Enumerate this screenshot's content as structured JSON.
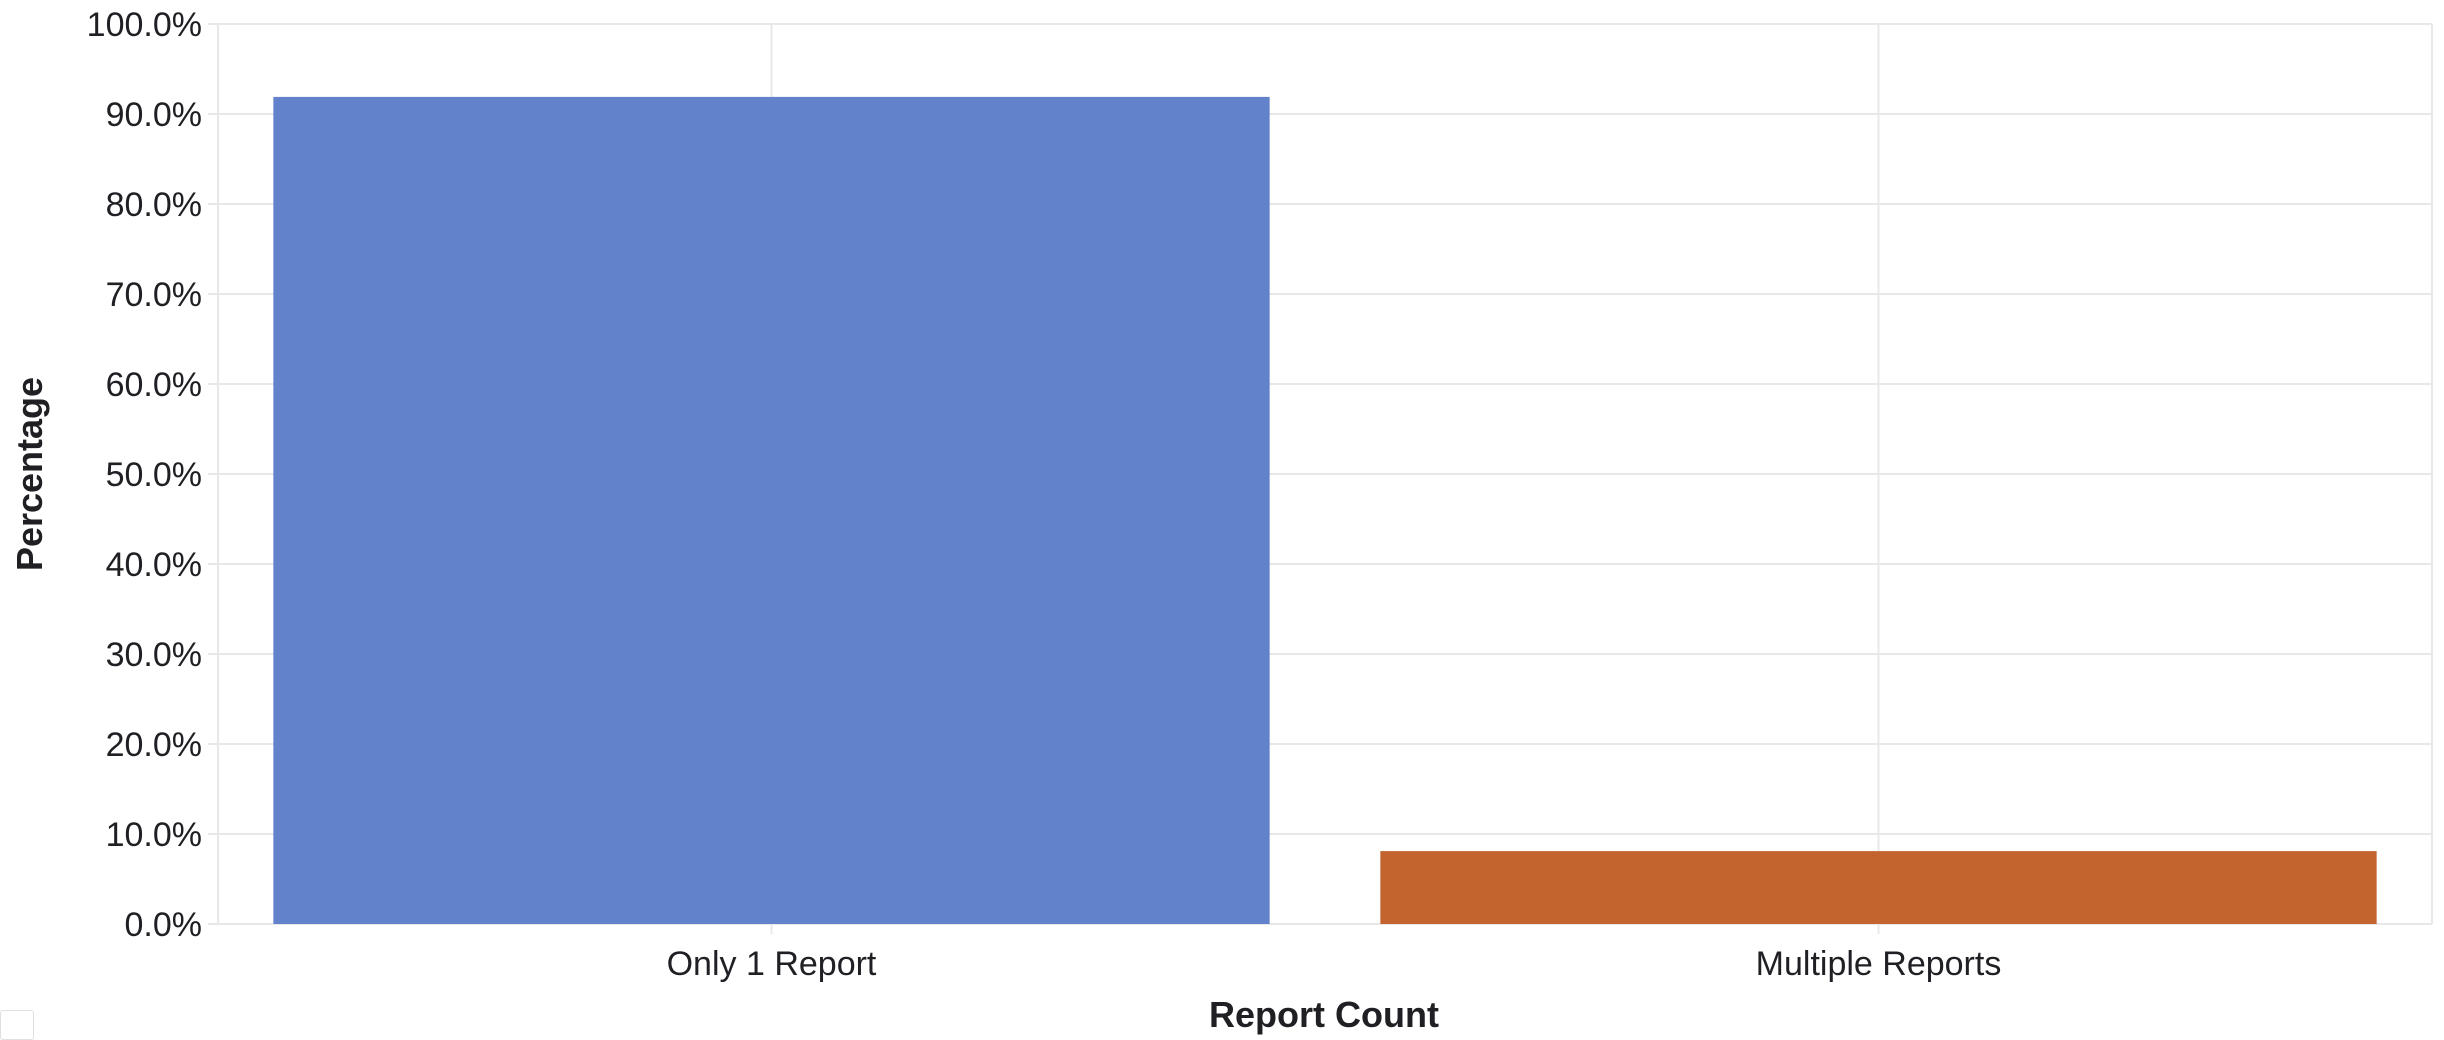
{
  "chart_data": {
    "type": "bar",
    "categories": [
      "Only 1 Report",
      "Multiple Reports"
    ],
    "values": [
      91.9,
      8.1
    ],
    "colors": [
      "#6282cb",
      "#c3642f"
    ],
    "xlabel": "Report Count",
    "ylabel": "Percentage",
    "ylim": [
      0,
      100
    ],
    "yticks": [
      "0.0%",
      "10.0%",
      "20.0%",
      "30.0%",
      "40.0%",
      "50.0%",
      "60.0%",
      "70.0%",
      "80.0%",
      "90.0%",
      "100.0%"
    ],
    "grid": true,
    "legend": "none"
  }
}
